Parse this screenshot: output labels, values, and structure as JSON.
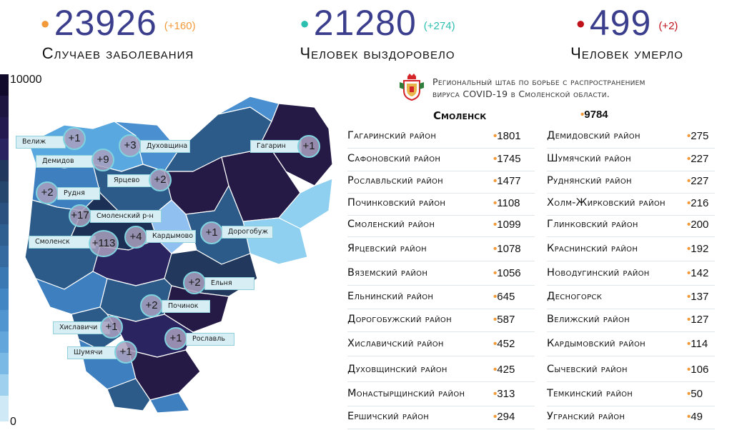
{
  "header": {
    "cases": {
      "value": "23926",
      "delta": "(+160)",
      "label": "Случаев заболевания",
      "color": "#f29a3a"
    },
    "recovered": {
      "value": "21280",
      "delta": "(+274)",
      "label": "Человек выздоровело",
      "color": "#2bbfb0"
    },
    "deaths": {
      "value": "499",
      "delta": "(+2)",
      "label": "Человек умерло",
      "color": "#c0121b"
    }
  },
  "scale": {
    "max": "10000",
    "min": "0"
  },
  "org": {
    "line1": "Региональный штаб по борьбе с распространением",
    "line2": "вируса  COVID-19 в Смоленской области."
  },
  "smolensk": {
    "name": "Смоленск",
    "value": "9784"
  },
  "table_left": [
    {
      "name": "Гагаринский район",
      "value": "1801"
    },
    {
      "name": "Сафоновский район",
      "value": "1745"
    },
    {
      "name": "Рославльский район",
      "value": "1477"
    },
    {
      "name": "Починковский район",
      "value": "1108"
    },
    {
      "name": "Смоленский район",
      "value": "1099"
    },
    {
      "name": "Ярцевский район",
      "value": "1078"
    },
    {
      "name": "Вяземский район",
      "value": "1056"
    },
    {
      "name": "Ельнинский район",
      "value": "645"
    },
    {
      "name": "Дорогобужский район",
      "value": "587"
    },
    {
      "name": "Хиславичский район",
      "value": "452"
    },
    {
      "name": "Духовщинский район",
      "value": "425"
    },
    {
      "name": "Монастырщинский район",
      "value": "313"
    },
    {
      "name": "Ершичский район",
      "value": "294"
    }
  ],
  "table_right": [
    {
      "name": "Демидовский район",
      "value": "275"
    },
    {
      "name": "Шумячский район",
      "value": "227"
    },
    {
      "name": "Руднянский район",
      "value": "227"
    },
    {
      "name": "Холм-Жирковский район",
      "value": "216"
    },
    {
      "name": "Глинковский район",
      "value": "200"
    },
    {
      "name": "Краснинский район",
      "value": "192"
    },
    {
      "name": "Новодугинский район",
      "value": "142"
    },
    {
      "name": "Десногорск",
      "value": "137"
    },
    {
      "name": "Велижский район",
      "value": "127"
    },
    {
      "name": "Кардымовский район",
      "value": "114"
    },
    {
      "name": "Сычевский район",
      "value": "106"
    },
    {
      "name": "Темкинский район",
      "value": "50"
    },
    {
      "name": "Угранский район",
      "value": "49"
    }
  ],
  "map_labels": [
    {
      "name": "Велиж",
      "delta": "+1"
    },
    {
      "name": "Демидов",
      "delta": "+9"
    },
    {
      "name": "Духовщина",
      "delta": "+3"
    },
    {
      "name": "Гагарин",
      "delta": "+1"
    },
    {
      "name": "Ярцево",
      "delta": "+2"
    },
    {
      "name": "Рудня",
      "delta": "+2"
    },
    {
      "name": "Смоленский р-н",
      "delta": "+17"
    },
    {
      "name": "Кардымово",
      "delta": "+4"
    },
    {
      "name": "Дорогобуж",
      "delta": "+1"
    },
    {
      "name": "Смоленск",
      "delta": "+113"
    },
    {
      "name": "Ельня",
      "delta": "+2"
    },
    {
      "name": "Починок",
      "delta": "+2"
    },
    {
      "name": "Хиславичи",
      "delta": "+1"
    },
    {
      "name": "Рославль",
      "delta": "+1"
    },
    {
      "name": "Шумячи",
      "delta": "+1"
    }
  ],
  "colors": {
    "accent_dot": "#f29a3a",
    "number": "#3b3e8c",
    "map_dark": "#241a45",
    "map_mid": "#2c5b8a",
    "map_light": "#5aa8e0",
    "map_pale": "#8fd0f0"
  }
}
